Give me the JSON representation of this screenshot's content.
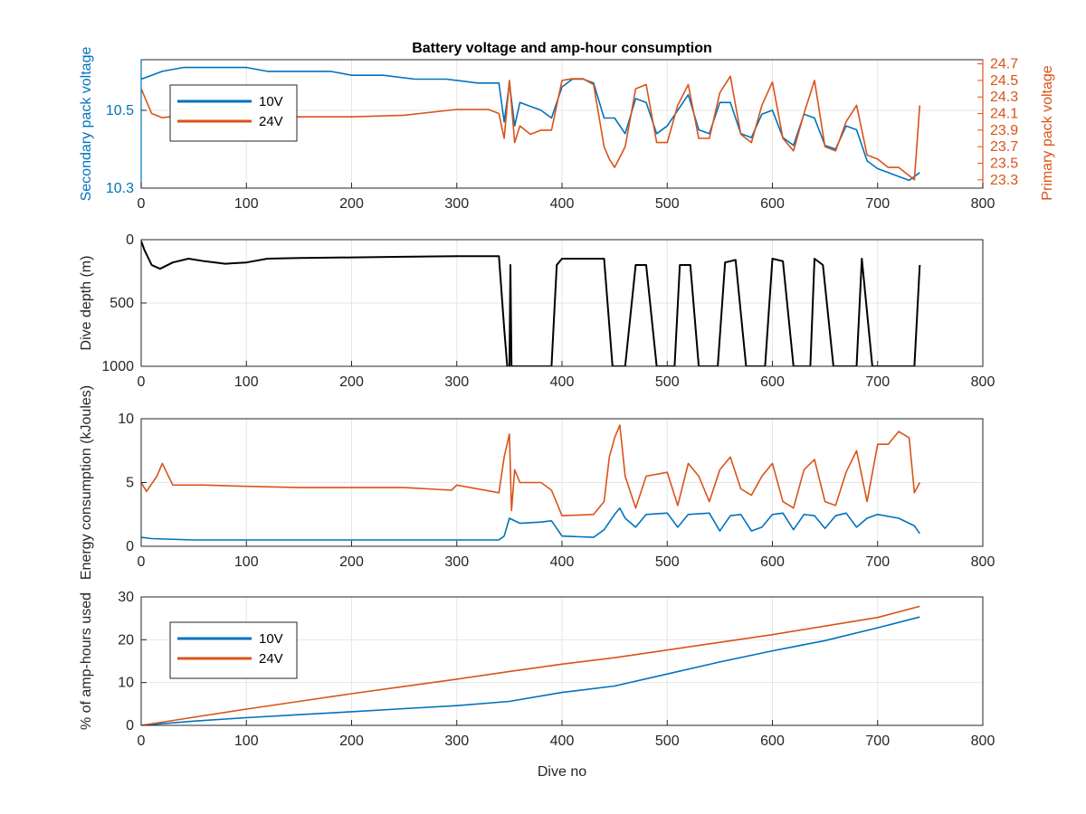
{
  "figure": {
    "title": "Battery voltage and amp-hour consumption",
    "xlabel": "Dive no"
  },
  "colors": {
    "series_10v": "#0072BD",
    "series_24v": "#D95319",
    "depth": "#000000",
    "grid": "#e6e6e6",
    "axis": "#262626"
  },
  "chart_data": [
    {
      "type": "line",
      "name": "voltage",
      "title": "Battery voltage and amp-hour consumption",
      "xlabel": "",
      "ylabel": "Secondary pack voltage",
      "ylabel_right": "Primary pack voltage",
      "xlim": [
        0,
        800
      ],
      "ylim": [
        10.3,
        10.63
      ],
      "ylim_right": [
        23.2,
        24.75
      ],
      "x_ticks": [
        "0",
        "100",
        "200",
        "300",
        "400",
        "500",
        "600",
        "700",
        "800"
      ],
      "y_ticks": [
        "10.3",
        "10.5"
      ],
      "y_ticks_right": [
        "23.3",
        "23.5",
        "23.7",
        "23.9",
        "24.1",
        "24.3",
        "24.5",
        "24.7"
      ],
      "legend": {
        "position": "top-left",
        "entries": [
          "10V",
          "24V"
        ]
      },
      "grid": true,
      "series": [
        {
          "name": "10V",
          "axis": "left",
          "x": [
            0,
            10,
            20,
            40,
            60,
            80,
            100,
            120,
            150,
            180,
            200,
            230,
            260,
            290,
            320,
            340,
            345,
            350,
            355,
            360,
            370,
            380,
            390,
            400,
            410,
            420,
            430,
            440,
            450,
            460,
            470,
            480,
            490,
            500,
            510,
            520,
            530,
            540,
            550,
            560,
            570,
            580,
            590,
            600,
            610,
            620,
            630,
            640,
            650,
            660,
            670,
            680,
            690,
            700,
            710,
            720,
            730,
            740
          ],
          "y": [
            10.58,
            10.59,
            10.6,
            10.61,
            10.61,
            10.61,
            10.61,
            10.6,
            10.6,
            10.6,
            10.59,
            10.59,
            10.58,
            10.58,
            10.57,
            10.57,
            10.47,
            10.57,
            10.46,
            10.52,
            10.51,
            10.5,
            10.48,
            10.56,
            10.58,
            10.58,
            10.57,
            10.48,
            10.48,
            10.44,
            10.53,
            10.52,
            10.44,
            10.46,
            10.5,
            10.54,
            10.45,
            10.44,
            10.52,
            10.52,
            10.44,
            10.43,
            10.49,
            10.5,
            10.43,
            10.41,
            10.49,
            10.48,
            10.41,
            10.4,
            10.46,
            10.45,
            10.37,
            10.35,
            10.34,
            10.33,
            10.32,
            10.34
          ]
        },
        {
          "name": "24V",
          "axis": "right",
          "x": [
            0,
            10,
            20,
            40,
            60,
            80,
            100,
            150,
            200,
            250,
            300,
            330,
            340,
            345,
            350,
            355,
            360,
            370,
            380,
            390,
            400,
            410,
            420,
            430,
            440,
            445,
            450,
            460,
            470,
            480,
            490,
            500,
            510,
            520,
            530,
            540,
            550,
            560,
            570,
            580,
            590,
            600,
            610,
            620,
            630,
            640,
            650,
            660,
            670,
            680,
            690,
            700,
            710,
            720,
            730,
            735,
            740
          ],
          "y": [
            24.4,
            24.1,
            24.05,
            24.08,
            24.07,
            24.07,
            24.07,
            24.06,
            24.06,
            24.08,
            24.15,
            24.15,
            24.1,
            23.8,
            24.5,
            23.75,
            23.95,
            23.85,
            23.9,
            23.9,
            24.5,
            24.52,
            24.52,
            24.45,
            23.7,
            23.55,
            23.45,
            23.7,
            24.4,
            24.45,
            23.75,
            23.75,
            24.2,
            24.45,
            23.8,
            23.8,
            24.35,
            24.55,
            23.85,
            23.75,
            24.2,
            24.48,
            23.8,
            23.65,
            24.1,
            24.5,
            23.7,
            23.65,
            24.0,
            24.2,
            23.6,
            23.55,
            23.45,
            23.45,
            23.35,
            23.3,
            24.2
          ]
        }
      ]
    },
    {
      "type": "line",
      "name": "depth",
      "title": "",
      "xlabel": "",
      "ylabel": "Dive depth (m)",
      "xlim": [
        0,
        800
      ],
      "ylim": [
        1000,
        0
      ],
      "x_ticks": [
        "0",
        "100",
        "200",
        "300",
        "400",
        "500",
        "600",
        "700",
        "800"
      ],
      "y_ticks": [
        "0",
        "500",
        "1000"
      ],
      "grid": true,
      "series": [
        {
          "name": "Dive depth",
          "x": [
            0,
            3,
            10,
            18,
            30,
            45,
            60,
            80,
            100,
            120,
            150,
            200,
            250,
            300,
            340,
            345,
            348,
            350,
            351,
            352,
            354,
            360,
            390,
            395,
            400,
            440,
            448,
            460,
            470,
            480,
            490,
            500,
            507,
            512,
            522,
            530,
            540,
            548,
            555,
            565,
            575,
            585,
            593,
            600,
            610,
            620,
            630,
            636,
            640,
            648,
            658,
            670,
            680,
            685,
            695,
            705,
            720,
            735,
            740
          ],
          "y": [
            10,
            80,
            200,
            230,
            180,
            150,
            170,
            190,
            180,
            150,
            145,
            140,
            135,
            130,
            130,
            700,
            1000,
            1000,
            200,
            1000,
            1000,
            1000,
            1000,
            200,
            150,
            150,
            1000,
            1000,
            200,
            200,
            1000,
            1000,
            1000,
            200,
            200,
            1000,
            1000,
            1000,
            180,
            160,
            1000,
            1000,
            1000,
            150,
            170,
            1000,
            1000,
            1000,
            150,
            200,
            1000,
            1000,
            1000,
            150,
            1000,
            1000,
            1000,
            1000,
            200
          ]
        }
      ]
    },
    {
      "type": "line",
      "name": "energy",
      "title": "",
      "xlabel": "",
      "ylabel": "Energy consumption (kJoules)",
      "xlim": [
        0,
        800
      ],
      "ylim": [
        0,
        10
      ],
      "x_ticks": [
        "0",
        "100",
        "200",
        "300",
        "400",
        "500",
        "600",
        "700",
        "800"
      ],
      "y_ticks": [
        "0",
        "5",
        "10"
      ],
      "grid": true,
      "series": [
        {
          "name": "10V",
          "x": [
            0,
            10,
            50,
            100,
            150,
            200,
            250,
            295,
            300,
            340,
            345,
            350,
            360,
            380,
            390,
            400,
            430,
            440,
            450,
            455,
            460,
            470,
            480,
            500,
            510,
            520,
            540,
            550,
            560,
            570,
            580,
            590,
            600,
            610,
            620,
            630,
            640,
            650,
            660,
            670,
            680,
            690,
            700,
            720,
            735,
            740
          ],
          "y": [
            0.7,
            0.6,
            0.5,
            0.5,
            0.5,
            0.5,
            0.5,
            0.5,
            0.5,
            0.5,
            0.8,
            2.2,
            1.8,
            1.9,
            2.0,
            0.8,
            0.7,
            1.3,
            2.5,
            3.0,
            2.2,
            1.5,
            2.5,
            2.6,
            1.5,
            2.5,
            2.6,
            1.2,
            2.4,
            2.5,
            1.2,
            1.5,
            2.5,
            2.6,
            1.3,
            2.5,
            2.4,
            1.4,
            2.4,
            2.6,
            1.5,
            2.2,
            2.5,
            2.2,
            1.6,
            1.0
          ]
        },
        {
          "name": "24V",
          "x": [
            0,
            5,
            15,
            20,
            30,
            60,
            100,
            150,
            200,
            250,
            295,
            300,
            340,
            345,
            350,
            352,
            355,
            360,
            380,
            390,
            400,
            430,
            440,
            445,
            450,
            455,
            460,
            470,
            480,
            500,
            510,
            520,
            530,
            540,
            550,
            560,
            570,
            580,
            590,
            600,
            610,
            620,
            630,
            640,
            650,
            660,
            670,
            680,
            690,
            700,
            710,
            720,
            730,
            735,
            740
          ],
          "y": [
            5.0,
            4.3,
            5.5,
            6.5,
            4.8,
            4.8,
            4.7,
            4.6,
            4.6,
            4.6,
            4.4,
            4.8,
            4.2,
            7.0,
            8.8,
            2.8,
            6.0,
            5.0,
            5.0,
            4.4,
            2.4,
            2.5,
            3.5,
            7.0,
            8.5,
            9.5,
            5.5,
            3.0,
            5.5,
            5.8,
            3.2,
            6.5,
            5.5,
            3.5,
            6.0,
            7.0,
            4.5,
            4.0,
            5.5,
            6.5,
            3.5,
            3.0,
            6.0,
            6.8,
            3.5,
            3.2,
            5.8,
            7.5,
            3.5,
            8.0,
            8.0,
            9.0,
            8.5,
            4.2,
            5.0
          ]
        }
      ]
    },
    {
      "type": "line",
      "name": "amphours",
      "title": "",
      "xlabel": "Dive no",
      "ylabel": "% of amp-hours used",
      "xlim": [
        0,
        800
      ],
      "ylim": [
        0,
        30
      ],
      "x_ticks": [
        "0",
        "100",
        "200",
        "300",
        "400",
        "500",
        "600",
        "700",
        "800"
      ],
      "y_ticks": [
        "0",
        "10",
        "20",
        "30"
      ],
      "legend": {
        "position": "top-left",
        "entries": [
          "10V",
          "24V"
        ]
      },
      "grid": true,
      "series": [
        {
          "name": "10V",
          "x": [
            0,
            50,
            100,
            150,
            200,
            250,
            300,
            350,
            400,
            450,
            500,
            550,
            600,
            650,
            700,
            740
          ],
          "y": [
            0,
            1.0,
            1.8,
            2.5,
            3.2,
            3.9,
            4.6,
            5.6,
            7.7,
            9.2,
            12.0,
            14.8,
            17.4,
            19.8,
            22.8,
            25.3
          ]
        },
        {
          "name": "24V",
          "x": [
            0,
            50,
            100,
            150,
            200,
            250,
            300,
            350,
            400,
            450,
            500,
            550,
            600,
            650,
            700,
            740
          ],
          "y": [
            0,
            1.9,
            3.8,
            5.6,
            7.4,
            9.1,
            10.8,
            12.6,
            14.3,
            15.8,
            17.6,
            19.4,
            21.2,
            23.2,
            25.2,
            27.8
          ]
        }
      ]
    }
  ]
}
